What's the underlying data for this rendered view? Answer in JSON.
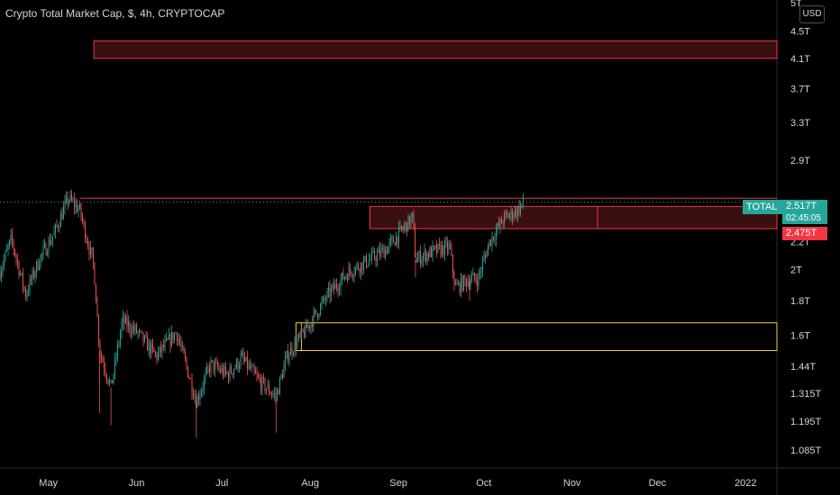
{
  "header": {
    "title": "Crypto Total Market Cap, $, 4h, CRYPTOCAP"
  },
  "price_axis": {
    "currency_label": "USD",
    "top_partial_label": "5T"
  },
  "symbol_tag": {
    "label": "TOTAL",
    "price": "2.517T",
    "countdown": "02:45:05",
    "color": "#26a69a"
  },
  "level_tag": {
    "price": "2.475T",
    "color": "#f23645"
  },
  "colors": {
    "up": "#26a69a",
    "down": "#ef5350",
    "resistance_line": "#f23645",
    "zone_red_border": "#f23645",
    "zone_red_fill": "#3a0f0f",
    "zone_yellow_border": "#f5d33b",
    "background": "#000000",
    "axis_text": "#d1d4dc"
  },
  "chart_data": {
    "type": "candlestick",
    "title": "Crypto Total Market Cap, $, 4h, CRYPTOCAP",
    "xlabel": "",
    "ylabel": "",
    "y_scale": "log",
    "ylim": [
      1.02,
      5.0
    ],
    "x_tick_labels": [
      "May",
      "Jun",
      "Jul",
      "Aug",
      "Sep",
      "Oct",
      "Nov",
      "Dec",
      "2022"
    ],
    "y_tick_labels": [
      "4.5T",
      "4.1T",
      "3.7T",
      "3.3T",
      "2.9T",
      "2.2T",
      "2T",
      "1.8T",
      "1.6T",
      "1.44T",
      "1.315T",
      "1.195T",
      "1.085T"
    ],
    "y_tick_values": [
      4.5,
      4.1,
      3.7,
      3.3,
      2.9,
      2.2,
      2.0,
      1.8,
      1.6,
      1.44,
      1.315,
      1.195,
      1.085
    ],
    "close_path": {
      "dates": [
        "2021-04-14",
        "2021-04-18",
        "2021-04-23",
        "2021-04-28",
        "2021-05-03",
        "2021-05-08",
        "2021-05-12",
        "2021-05-17",
        "2021-05-19",
        "2021-05-23",
        "2021-05-27",
        "2021-06-01",
        "2021-06-08",
        "2021-06-15",
        "2021-06-22",
        "2021-06-27",
        "2021-07-03",
        "2021-07-08",
        "2021-07-14",
        "2021-07-20",
        "2021-07-24",
        "2021-07-30",
        "2021-08-07",
        "2021-08-14",
        "2021-08-22",
        "2021-08-28",
        "2021-09-06",
        "2021-09-07",
        "2021-09-12",
        "2021-09-19",
        "2021-09-21",
        "2021-09-26",
        "2021-09-29",
        "2021-10-03",
        "2021-10-08",
        "2021-10-13",
        "2021-10-15"
      ],
      "values": [
        1.99,
        2.22,
        1.84,
        2.08,
        2.26,
        2.55,
        2.45,
        2.02,
        1.52,
        1.34,
        1.68,
        1.62,
        1.49,
        1.62,
        1.28,
        1.45,
        1.4,
        1.48,
        1.37,
        1.3,
        1.5,
        1.62,
        1.83,
        1.98,
        2.07,
        2.15,
        2.39,
        2.07,
        2.12,
        2.16,
        1.88,
        1.94,
        1.94,
        2.2,
        2.38,
        2.45,
        2.517
      ]
    },
    "extremes": {
      "may_high": 2.55,
      "may_low": 1.23,
      "july_low": 1.13,
      "sept_high": 2.48,
      "sept_low": 1.8
    },
    "horizontal_line": {
      "value": 2.55,
      "start_date": "2021-05-12"
    },
    "zones": [
      {
        "name": "upper-supply-zone",
        "start_date": "2021-05-17",
        "top": 4.35,
        "bottom": 4.1,
        "color": "red"
      },
      {
        "name": "resistance-zone",
        "start_date": "2021-08-22",
        "top": 2.48,
        "bottom": 2.3,
        "color": "red"
      },
      {
        "name": "support-zone",
        "start_date": "2021-07-27",
        "top": 1.67,
        "bottom": 1.52,
        "color": "yellow"
      }
    ],
    "last_price": 2.517,
    "level_price": 2.475
  }
}
